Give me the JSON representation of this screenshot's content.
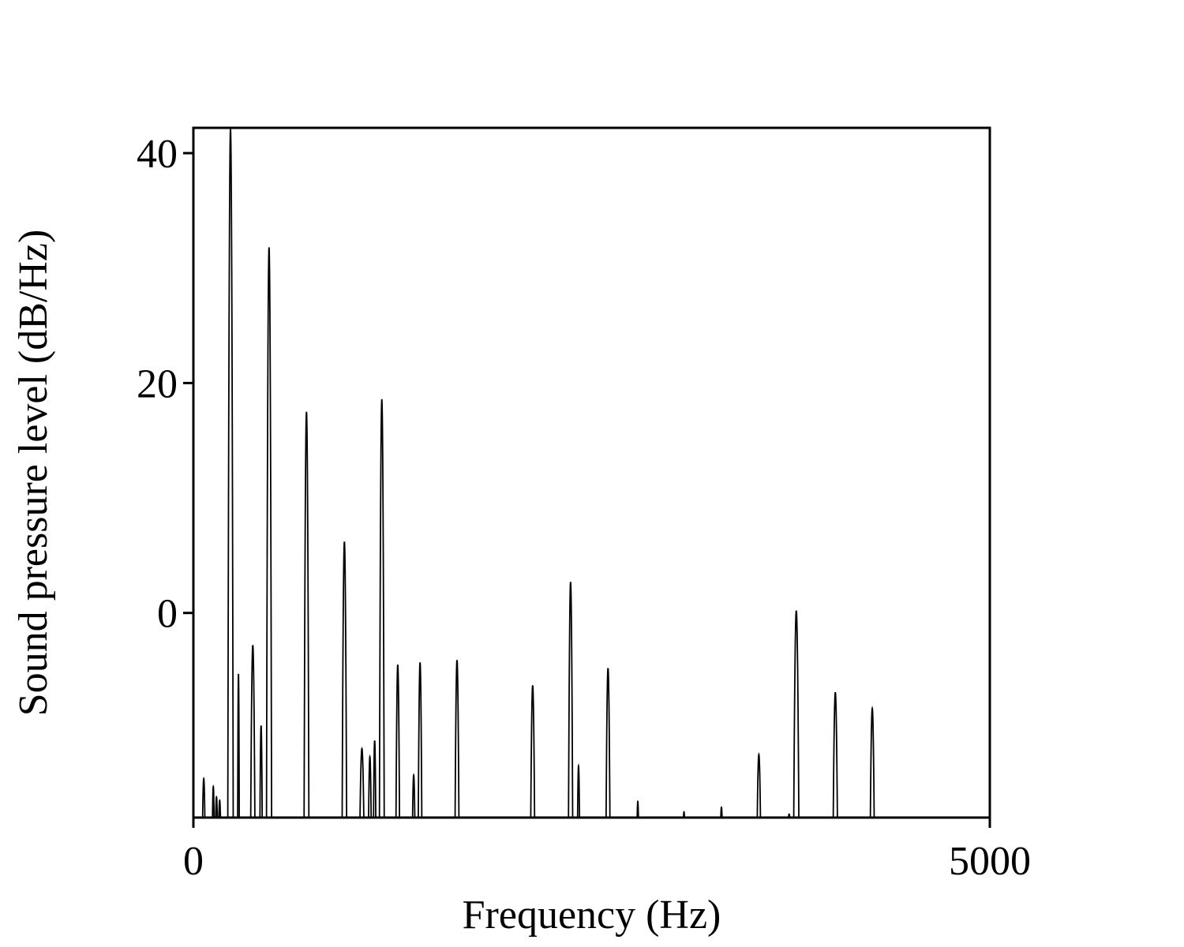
{
  "chart_data": {
    "type": "line",
    "title": "",
    "xlabel": "Frequency (Hz)",
    "ylabel": "Sound pressure level (dB/Hz)",
    "xlim": [
      0,
      5000
    ],
    "ylim": [
      -17.8,
      42.2
    ],
    "x_ticks": [
      0,
      5000
    ],
    "y_ticks": [
      0,
      20,
      40
    ],
    "grid": false,
    "legend": "none",
    "colors": {
      "line": "#000000",
      "axes": "#000000",
      "background": "#ffffff"
    },
    "peaks": [
      {
        "f": 65,
        "db": -14.4,
        "w": 7
      },
      {
        "f": 125,
        "db": -15.1,
        "w": 5
      },
      {
        "f": 145,
        "db": -16,
        "w": 5
      },
      {
        "f": 165,
        "db": -16.3,
        "w": 5
      },
      {
        "f": 233,
        "db": 42.1,
        "w": 17
      },
      {
        "f": 283,
        "db": -5.3,
        "w": 5
      },
      {
        "f": 373,
        "db": -2.8,
        "w": 13
      },
      {
        "f": 425,
        "db": -9.8,
        "w": 7
      },
      {
        "f": 475,
        "db": 31.8,
        "w": 16
      },
      {
        "f": 710,
        "db": 17.5,
        "w": 15
      },
      {
        "f": 948,
        "db": 6.2,
        "w": 14
      },
      {
        "f": 1058,
        "db": -11.8,
        "w": 12
      },
      {
        "f": 1108,
        "db": -12.5,
        "w": 8
      },
      {
        "f": 1138,
        "db": -11.1,
        "w": 7
      },
      {
        "f": 1183,
        "db": 18.6,
        "w": 15
      },
      {
        "f": 1283,
        "db": -4.5,
        "w": 11
      },
      {
        "f": 1383,
        "db": -14.1,
        "w": 7
      },
      {
        "f": 1423,
        "db": -4.3,
        "w": 11
      },
      {
        "f": 1655,
        "db": -4.1,
        "w": 12
      },
      {
        "f": 2130,
        "db": -6.3,
        "w": 12
      },
      {
        "f": 2368,
        "db": 2.7,
        "w": 13
      },
      {
        "f": 2418,
        "db": -13.3,
        "w": 6
      },
      {
        "f": 2603,
        "db": -4.8,
        "w": 12
      },
      {
        "f": 2790,
        "db": -16.4,
        "w": 4
      },
      {
        "f": 3080,
        "db": -17.3,
        "w": 3
      },
      {
        "f": 3315,
        "db": -16.9,
        "w": 4
      },
      {
        "f": 3550,
        "db": -12.3,
        "w": 10
      },
      {
        "f": 3740,
        "db": -17.5,
        "w": 4
      },
      {
        "f": 3785,
        "db": 0.2,
        "w": 16
      },
      {
        "f": 4030,
        "db": -6.9,
        "w": 13
      },
      {
        "f": 4262,
        "db": -8.3,
        "w": 12
      }
    ]
  }
}
